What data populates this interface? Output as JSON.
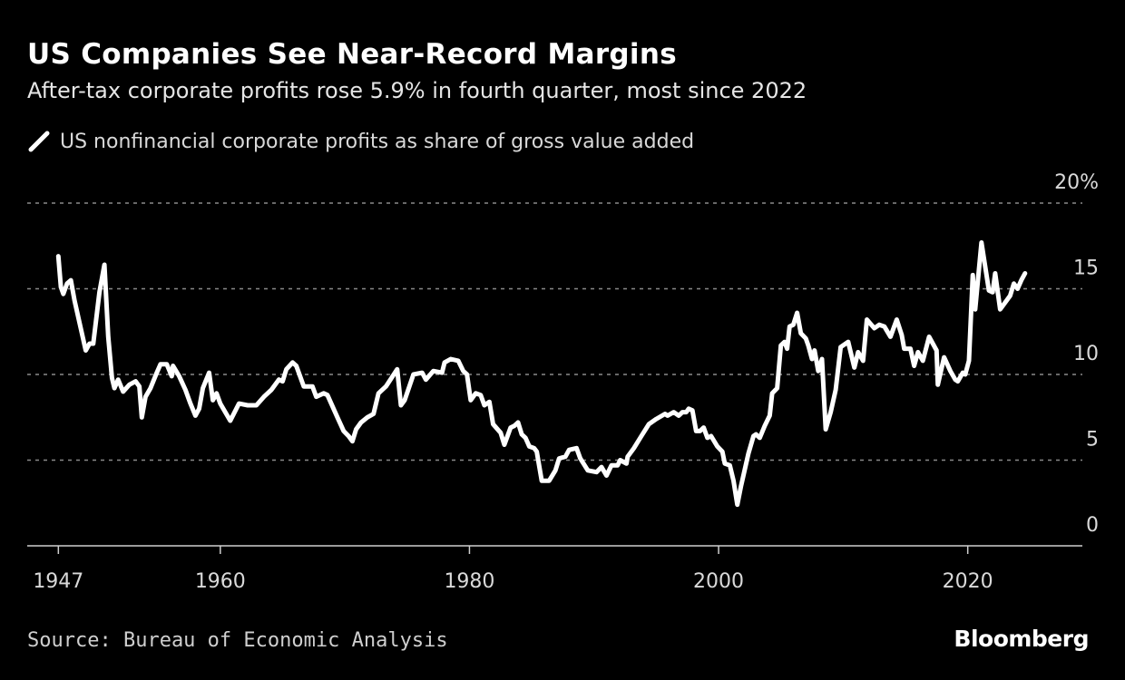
{
  "chart_data": {
    "type": "line",
    "title": "US Companies See Near-Record Margins",
    "subtitle": "After-tax corporate profits rose 5.9% in fourth quarter, most since 2022",
    "legend": "US nonfinancial corporate profits as share of gross value added",
    "legend_placement": "top-left",
    "source": "Source: Bureau of Economic Analysis",
    "logo": "Bloomberg",
    "xlabel": "",
    "ylabel": "",
    "xlim": [
      1944.5,
      2029.2
    ],
    "ylim": [
      0,
      20
    ],
    "grid": true,
    "line_color": "#ffffff",
    "background": "#000000",
    "x_ticks": [
      {
        "value": 1947,
        "label": "1947"
      },
      {
        "value": 1960,
        "label": "1960"
      },
      {
        "value": 1980,
        "label": "1980"
      },
      {
        "value": 2000,
        "label": "2000"
      },
      {
        "value": 2020,
        "label": "2020"
      }
    ],
    "y_ticks": [
      {
        "value": 20,
        "label": "20%"
      },
      {
        "value": 15,
        "label": "15"
      },
      {
        "value": 10,
        "label": "10"
      },
      {
        "value": 5,
        "label": "5"
      },
      {
        "value": 0,
        "label": "0"
      }
    ],
    "series": [
      {
        "x": [
          1947.0,
          1947.2,
          1947.4,
          1947.7,
          1948.0,
          1948.3,
          1948.8,
          1949.2,
          1949.5,
          1949.8,
          1950.3,
          1950.7,
          1951.0,
          1951.3,
          1951.5,
          1951.8,
          1952.2,
          1952.7,
          1953.2,
          1953.5,
          1953.7,
          1954.0,
          1954.4,
          1954.9,
          1955.2,
          1955.7,
          1956.1,
          1956.2,
          1956.7,
          1957.2,
          1957.6,
          1958.0,
          1958.3,
          1958.6,
          1959.1,
          1959.4,
          1959.7,
          1960.0,
          1960.8,
          1961.5,
          1962.2,
          1962.9,
          1963.5,
          1964.1,
          1964.7,
          1965.0,
          1965.3,
          1965.8,
          1966.1,
          1966.7,
          1967.4,
          1967.7,
          1968.3,
          1968.6,
          1969.4,
          1969.9,
          1970.3,
          1970.6,
          1970.9,
          1971.3,
          1971.8,
          1972.3,
          1972.7,
          1973.3,
          1974.2,
          1974.5,
          1974.8,
          1975.5,
          1976.2,
          1976.5,
          1977.1,
          1977.8,
          1978.0,
          1978.5,
          1979.1,
          1979.5,
          1979.8,
          1980.1,
          1980.5,
          1980.9,
          1981.2,
          1981.6,
          1981.9,
          1982.5,
          1982.8,
          1983.3,
          1983.6,
          1983.9,
          1984.2,
          1984.5,
          1984.8,
          1985.2,
          1985.4,
          1985.8,
          1986.4,
          1986.9,
          1987.2,
          1987.7,
          1988.0,
          1988.6,
          1988.9,
          1989.5,
          1990.2,
          1990.6,
          1991.0,
          1991.4,
          1991.9,
          1992.1,
          1992.6,
          1992.7,
          1993.2,
          1993.8,
          1994.4,
          1995.0,
          1995.7,
          1995.9,
          1996.4,
          1996.8,
          1997.1,
          1997.4,
          1997.6,
          1997.9,
          1998.2,
          1998.5,
          1998.8,
          1999.1,
          1999.4,
          1999.9,
          2000.3,
          2000.5,
          2000.9,
          2001.2,
          2001.5,
          2001.8,
          2002.4,
          2002.8,
          2003.0,
          2003.3,
          2003.7,
          2004.1,
          2004.3,
          2004.7,
          2005.0,
          2005.3,
          2005.5,
          2005.7,
          2006.0,
          2006.3,
          2006.6,
          2007.0,
          2007.2,
          2007.5,
          2007.7,
          2008.0,
          2008.3,
          2008.6,
          2009.0,
          2009.4,
          2009.8,
          2010.4,
          2010.9,
          2011.2,
          2011.6,
          2011.9,
          2012.5,
          2012.9,
          2013.3,
          2013.8,
          2014.3,
          2014.7,
          2014.9,
          2015.4,
          2015.7,
          2016.0,
          2016.4,
          2016.9,
          2017.5,
          2017.6,
          2018.1,
          2018.6,
          2019.0,
          2019.2,
          2019.6,
          2019.8,
          2020.1,
          2020.4,
          2020.6,
          2021.1,
          2021.7,
          2022.0,
          2022.2,
          2022.6,
          2023.4,
          2023.7,
          2024.0,
          2024.3,
          2024.6
        ],
        "values": [
          16.9,
          15.1,
          14.7,
          15.3,
          15.5,
          14.3,
          12.7,
          11.4,
          11.8,
          11.8,
          14.8,
          16.4,
          12.2,
          9.8,
          9.2,
          9.7,
          9.0,
          9.4,
          9.6,
          9.3,
          7.5,
          8.7,
          9.2,
          10.1,
          10.6,
          10.6,
          9.9,
          10.5,
          9.9,
          9.1,
          8.3,
          7.6,
          8.0,
          9.2,
          10.1,
          8.5,
          8.9,
          8.3,
          7.3,
          8.3,
          8.2,
          8.2,
          8.7,
          9.1,
          9.7,
          9.6,
          10.3,
          10.7,
          10.5,
          9.3,
          9.3,
          8.7,
          8.9,
          8.8,
          7.5,
          6.7,
          6.4,
          6.1,
          6.8,
          7.2,
          7.5,
          7.7,
          8.9,
          9.3,
          10.3,
          8.2,
          8.5,
          10.0,
          10.1,
          9.7,
          10.2,
          10.1,
          10.7,
          10.9,
          10.8,
          10.2,
          10.0,
          8.5,
          8.9,
          8.8,
          8.2,
          8.4,
          7.1,
          6.6,
          5.9,
          6.9,
          7.0,
          7.2,
          6.5,
          6.3,
          5.8,
          5.7,
          5.5,
          3.8,
          3.8,
          4.4,
          5.1,
          5.2,
          5.6,
          5.7,
          5.1,
          4.4,
          4.3,
          4.6,
          4.1,
          4.7,
          4.7,
          5.0,
          4.8,
          5.2,
          5.7,
          6.4,
          7.1,
          7.4,
          7.7,
          7.6,
          7.8,
          7.6,
          7.8,
          7.8,
          8.0,
          7.9,
          6.7,
          6.7,
          6.9,
          6.3,
          6.4,
          5.8,
          5.5,
          4.8,
          4.7,
          3.8,
          2.4,
          3.5,
          5.4,
          6.4,
          6.5,
          6.3,
          7.0,
          7.6,
          8.9,
          9.2,
          11.7,
          11.9,
          11.5,
          12.8,
          12.9,
          13.6,
          12.4,
          12.1,
          11.7,
          10.9,
          11.4,
          10.2,
          10.9,
          6.8,
          7.8,
          9.1,
          11.6,
          11.9,
          10.4,
          11.3,
          10.8,
          13.2,
          12.7,
          12.9,
          12.8,
          12.2,
          13.2,
          12.3,
          11.5,
          11.5,
          10.5,
          11.3,
          10.8,
          12.2,
          11.4,
          9.4,
          11.0,
          10.2,
          9.7,
          9.6,
          10.1,
          10.0,
          10.8,
          15.8,
          13.8,
          17.7,
          14.9,
          14.8,
          15.9,
          13.8,
          14.6,
          15.3,
          15.0,
          15.5,
          15.9
        ]
      }
    ]
  }
}
